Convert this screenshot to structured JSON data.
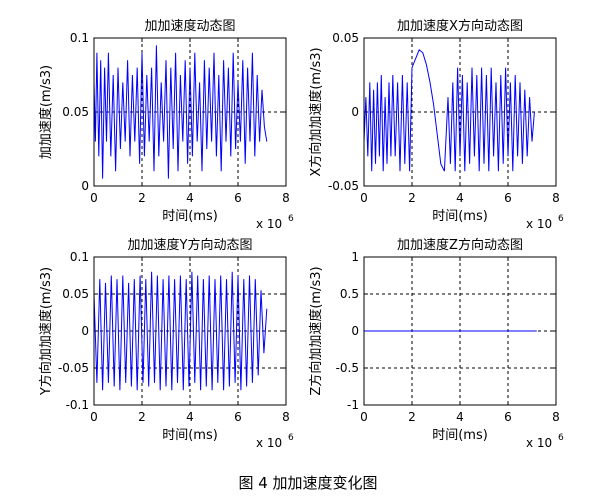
{
  "figure": {
    "caption": "图 4  加加速度变化图"
  },
  "chart_data": [
    {
      "type": "line",
      "title": "加加速度动态图",
      "xlabel": "时间(ms)",
      "ylabel": "加加速度(m/s3)",
      "x_exponent_label": "x 10",
      "x_exponent_power": "6",
      "xlim": [
        0,
        8
      ],
      "ylim": [
        0,
        0.1
      ],
      "xticks": [
        "0",
        "2",
        "4",
        "6",
        "8"
      ],
      "yticks": [
        "0",
        "0.05",
        "0.1"
      ],
      "grid": true,
      "series": [
        {
          "color": "#0000ff",
          "x": [
            0.0,
            0.06,
            0.12,
            0.2,
            0.28,
            0.36,
            0.44,
            0.52,
            0.6,
            0.7,
            0.8,
            0.9,
            1.0,
            1.1,
            1.2,
            1.3,
            1.4,
            1.5,
            1.6,
            1.7,
            1.8,
            1.9,
            2.0,
            2.1,
            2.2,
            2.3,
            2.4,
            2.5,
            2.6,
            2.7,
            2.8,
            2.9,
            3.0,
            3.1,
            3.2,
            3.3,
            3.4,
            3.5,
            3.6,
            3.7,
            3.8,
            3.9,
            4.0,
            4.1,
            4.2,
            4.3,
            4.4,
            4.5,
            4.6,
            4.7,
            4.8,
            4.9,
            5.0,
            5.1,
            5.2,
            5.3,
            5.4,
            5.5,
            5.6,
            5.7,
            5.8,
            5.9,
            6.0,
            6.1,
            6.2,
            6.3,
            6.4,
            6.5,
            6.6,
            6.7,
            6.8,
            6.9,
            7.0,
            7.1,
            7.2
          ],
          "y": [
            0.07,
            0.03,
            0.09,
            0.02,
            0.085,
            0.005,
            0.08,
            0.03,
            0.09,
            0.02,
            0.075,
            0.01,
            0.08,
            0.025,
            0.07,
            0.03,
            0.085,
            0.02,
            0.075,
            0.03,
            0.08,
            0.015,
            0.09,
            0.02,
            0.075,
            0.03,
            0.08,
            0.01,
            0.095,
            0.02,
            0.07,
            0.03,
            0.085,
            0.005,
            0.08,
            0.025,
            0.09,
            0.01,
            0.075,
            0.03,
            0.085,
            0.015,
            0.08,
            0.02,
            0.09,
            0.03,
            0.07,
            0.01,
            0.085,
            0.025,
            0.08,
            0.03,
            0.09,
            0.02,
            0.075,
            0.01,
            0.085,
            0.03,
            0.08,
            0.02,
            0.09,
            0.025,
            0.07,
            0.03,
            0.085,
            0.015,
            0.08,
            0.03,
            0.09,
            0.02,
            0.075,
            0.03,
            0.065,
            0.04,
            0.03
          ]
        }
      ]
    },
    {
      "type": "line",
      "title": "加加速度X方向动态图",
      "xlabel": "时间(ms)",
      "ylabel": "X方向加加速度(m/s3)",
      "x_exponent_label": "x 10",
      "x_exponent_power": "6",
      "xlim": [
        0,
        8
      ],
      "ylim": [
        -0.05,
        0.05
      ],
      "xticks": [
        "0",
        "2",
        "4",
        "6",
        "8"
      ],
      "yticks": [
        "-0.05",
        "0",
        "0.05"
      ],
      "grid": true,
      "series": [
        {
          "color": "#0000ff",
          "x": [
            0.0,
            0.08,
            0.16,
            0.24,
            0.32,
            0.4,
            0.48,
            0.56,
            0.64,
            0.72,
            0.8,
            0.88,
            0.96,
            1.04,
            1.12,
            1.2,
            1.3,
            1.4,
            1.5,
            1.6,
            1.7,
            1.8,
            1.9,
            2.0,
            2.15,
            2.3,
            2.45,
            2.6,
            2.75,
            2.9,
            3.05,
            3.2,
            3.35,
            3.5,
            3.6,
            3.7,
            3.8,
            3.9,
            4.0,
            4.1,
            4.2,
            4.3,
            4.4,
            4.5,
            4.6,
            4.7,
            4.8,
            4.9,
            5.0,
            5.1,
            5.2,
            5.3,
            5.4,
            5.5,
            5.6,
            5.7,
            5.8,
            5.9,
            6.0,
            6.1,
            6.2,
            6.3,
            6.4,
            6.5,
            6.6,
            6.7,
            6.8,
            6.9,
            7.0,
            7.1
          ],
          "y": [
            -0.02,
            0.01,
            -0.03,
            0.02,
            -0.04,
            0.015,
            -0.035,
            0.02,
            -0.03,
            0.025,
            -0.04,
            0.01,
            -0.035,
            0.02,
            -0.03,
            0.025,
            -0.03,
            0.02,
            -0.04,
            0.025,
            -0.035,
            0.02,
            -0.04,
            0.03,
            0.036,
            0.042,
            0.04,
            0.032,
            0.02,
            0.005,
            -0.015,
            -0.035,
            -0.04,
            0.01,
            -0.035,
            0.02,
            -0.04,
            0.03,
            -0.03,
            0.025,
            -0.04,
            0.02,
            -0.035,
            0.03,
            -0.03,
            0.025,
            -0.04,
            0.03,
            -0.035,
            0.025,
            -0.04,
            0.03,
            -0.03,
            0.02,
            -0.04,
            0.025,
            -0.035,
            0.03,
            -0.03,
            0.02,
            -0.04,
            0.025,
            -0.03,
            0.02,
            -0.035,
            0.015,
            -0.03,
            0.01,
            -0.02,
            0.0
          ]
        }
      ]
    },
    {
      "type": "line",
      "title": "加加速度Y方向动态图",
      "xlabel": "时间(ms)",
      "ylabel": "Y方向加加速度(m/s3)",
      "x_exponent_label": "x 10",
      "x_exponent_power": "6",
      "xlim": [
        0,
        8
      ],
      "ylim": [
        -0.1,
        0.1
      ],
      "xticks": [
        "0",
        "2",
        "4",
        "6",
        "8"
      ],
      "yticks": [
        "-0.1",
        "-0.05",
        "0",
        "0.05",
        "0.1"
      ],
      "grid": true,
      "series": [
        {
          "color": "#0000ff",
          "x": [
            0.0,
            0.12,
            0.24,
            0.36,
            0.48,
            0.6,
            0.72,
            0.84,
            0.96,
            1.08,
            1.2,
            1.32,
            1.44,
            1.56,
            1.68,
            1.8,
            1.92,
            2.04,
            2.16,
            2.28,
            2.4,
            2.52,
            2.64,
            2.76,
            2.88,
            3.0,
            3.12,
            3.24,
            3.36,
            3.48,
            3.6,
            3.72,
            3.84,
            3.96,
            4.08,
            4.2,
            4.32,
            4.44,
            4.56,
            4.68,
            4.8,
            4.92,
            5.04,
            5.16,
            5.28,
            5.4,
            5.52,
            5.64,
            5.76,
            5.88,
            6.0,
            6.12,
            6.24,
            6.36,
            6.48,
            6.6,
            6.72,
            6.84,
            6.96,
            7.08,
            7.2
          ],
          "y": [
            0.05,
            -0.07,
            0.07,
            -0.08,
            0.065,
            -0.07,
            0.075,
            -0.075,
            0.07,
            -0.08,
            0.075,
            -0.07,
            0.065,
            -0.075,
            0.07,
            -0.08,
            0.075,
            -0.07,
            0.07,
            -0.075,
            0.08,
            -0.07,
            0.075,
            -0.08,
            0.07,
            -0.075,
            0.075,
            -0.08,
            0.07,
            -0.07,
            0.075,
            -0.08,
            0.07,
            -0.075,
            0.08,
            -0.07,
            0.075,
            -0.08,
            0.07,
            -0.075,
            0.075,
            -0.08,
            0.07,
            -0.07,
            0.075,
            -0.08,
            0.07,
            -0.075,
            0.08,
            -0.07,
            0.075,
            -0.08,
            0.07,
            -0.075,
            0.075,
            -0.07,
            0.07,
            -0.06,
            0.055,
            -0.03,
            0.03
          ]
        }
      ]
    },
    {
      "type": "line",
      "title": "加加速度Z方向动态图",
      "xlabel": "时间(ms)",
      "ylabel": "Z方向加加速度(m/s3)",
      "x_exponent_label": "x 10",
      "x_exponent_power": "6",
      "xlim": [
        0,
        8
      ],
      "ylim": [
        -1,
        1
      ],
      "xticks": [
        "0",
        "2",
        "4",
        "6",
        "8"
      ],
      "yticks": [
        "-1",
        "-0.5",
        "0",
        "0.5",
        "1"
      ],
      "grid": true,
      "series": [
        {
          "color": "#0000ff",
          "x": [
            0,
            7.2
          ],
          "y": [
            0,
            0
          ]
        }
      ]
    }
  ]
}
